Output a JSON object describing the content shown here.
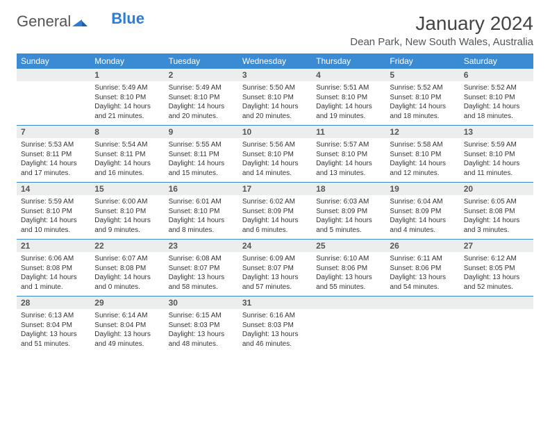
{
  "logo": {
    "text1": "General",
    "text2": "Blue"
  },
  "title": "January 2024",
  "location": "Dean Park, New South Wales, Australia",
  "colors": {
    "header_bg": "#3b8bd4",
    "header_fg": "#ffffff",
    "daynum_bg": "#eceded",
    "text": "#333333",
    "rule": "#3b8bd4"
  },
  "weekdays": [
    "Sunday",
    "Monday",
    "Tuesday",
    "Wednesday",
    "Thursday",
    "Friday",
    "Saturday"
  ],
  "weeks": [
    [
      {
        "num": "",
        "lines": []
      },
      {
        "num": "1",
        "lines": [
          "Sunrise: 5:49 AM",
          "Sunset: 8:10 PM",
          "Daylight: 14 hours and 21 minutes."
        ]
      },
      {
        "num": "2",
        "lines": [
          "Sunrise: 5:49 AM",
          "Sunset: 8:10 PM",
          "Daylight: 14 hours and 20 minutes."
        ]
      },
      {
        "num": "3",
        "lines": [
          "Sunrise: 5:50 AM",
          "Sunset: 8:10 PM",
          "Daylight: 14 hours and 20 minutes."
        ]
      },
      {
        "num": "4",
        "lines": [
          "Sunrise: 5:51 AM",
          "Sunset: 8:10 PM",
          "Daylight: 14 hours and 19 minutes."
        ]
      },
      {
        "num": "5",
        "lines": [
          "Sunrise: 5:52 AM",
          "Sunset: 8:10 PM",
          "Daylight: 14 hours and 18 minutes."
        ]
      },
      {
        "num": "6",
        "lines": [
          "Sunrise: 5:52 AM",
          "Sunset: 8:10 PM",
          "Daylight: 14 hours and 18 minutes."
        ]
      }
    ],
    [
      {
        "num": "7",
        "lines": [
          "Sunrise: 5:53 AM",
          "Sunset: 8:11 PM",
          "Daylight: 14 hours and 17 minutes."
        ]
      },
      {
        "num": "8",
        "lines": [
          "Sunrise: 5:54 AM",
          "Sunset: 8:11 PM",
          "Daylight: 14 hours and 16 minutes."
        ]
      },
      {
        "num": "9",
        "lines": [
          "Sunrise: 5:55 AM",
          "Sunset: 8:11 PM",
          "Daylight: 14 hours and 15 minutes."
        ]
      },
      {
        "num": "10",
        "lines": [
          "Sunrise: 5:56 AM",
          "Sunset: 8:10 PM",
          "Daylight: 14 hours and 14 minutes."
        ]
      },
      {
        "num": "11",
        "lines": [
          "Sunrise: 5:57 AM",
          "Sunset: 8:10 PM",
          "Daylight: 14 hours and 13 minutes."
        ]
      },
      {
        "num": "12",
        "lines": [
          "Sunrise: 5:58 AM",
          "Sunset: 8:10 PM",
          "Daylight: 14 hours and 12 minutes."
        ]
      },
      {
        "num": "13",
        "lines": [
          "Sunrise: 5:59 AM",
          "Sunset: 8:10 PM",
          "Daylight: 14 hours and 11 minutes."
        ]
      }
    ],
    [
      {
        "num": "14",
        "lines": [
          "Sunrise: 5:59 AM",
          "Sunset: 8:10 PM",
          "Daylight: 14 hours and 10 minutes."
        ]
      },
      {
        "num": "15",
        "lines": [
          "Sunrise: 6:00 AM",
          "Sunset: 8:10 PM",
          "Daylight: 14 hours and 9 minutes."
        ]
      },
      {
        "num": "16",
        "lines": [
          "Sunrise: 6:01 AM",
          "Sunset: 8:10 PM",
          "Daylight: 14 hours and 8 minutes."
        ]
      },
      {
        "num": "17",
        "lines": [
          "Sunrise: 6:02 AM",
          "Sunset: 8:09 PM",
          "Daylight: 14 hours and 6 minutes."
        ]
      },
      {
        "num": "18",
        "lines": [
          "Sunrise: 6:03 AM",
          "Sunset: 8:09 PM",
          "Daylight: 14 hours and 5 minutes."
        ]
      },
      {
        "num": "19",
        "lines": [
          "Sunrise: 6:04 AM",
          "Sunset: 8:09 PM",
          "Daylight: 14 hours and 4 minutes."
        ]
      },
      {
        "num": "20",
        "lines": [
          "Sunrise: 6:05 AM",
          "Sunset: 8:08 PM",
          "Daylight: 14 hours and 3 minutes."
        ]
      }
    ],
    [
      {
        "num": "21",
        "lines": [
          "Sunrise: 6:06 AM",
          "Sunset: 8:08 PM",
          "Daylight: 14 hours and 1 minute."
        ]
      },
      {
        "num": "22",
        "lines": [
          "Sunrise: 6:07 AM",
          "Sunset: 8:08 PM",
          "Daylight: 14 hours and 0 minutes."
        ]
      },
      {
        "num": "23",
        "lines": [
          "Sunrise: 6:08 AM",
          "Sunset: 8:07 PM",
          "Daylight: 13 hours and 58 minutes."
        ]
      },
      {
        "num": "24",
        "lines": [
          "Sunrise: 6:09 AM",
          "Sunset: 8:07 PM",
          "Daylight: 13 hours and 57 minutes."
        ]
      },
      {
        "num": "25",
        "lines": [
          "Sunrise: 6:10 AM",
          "Sunset: 8:06 PM",
          "Daylight: 13 hours and 55 minutes."
        ]
      },
      {
        "num": "26",
        "lines": [
          "Sunrise: 6:11 AM",
          "Sunset: 8:06 PM",
          "Daylight: 13 hours and 54 minutes."
        ]
      },
      {
        "num": "27",
        "lines": [
          "Sunrise: 6:12 AM",
          "Sunset: 8:05 PM",
          "Daylight: 13 hours and 52 minutes."
        ]
      }
    ],
    [
      {
        "num": "28",
        "lines": [
          "Sunrise: 6:13 AM",
          "Sunset: 8:04 PM",
          "Daylight: 13 hours and 51 minutes."
        ]
      },
      {
        "num": "29",
        "lines": [
          "Sunrise: 6:14 AM",
          "Sunset: 8:04 PM",
          "Daylight: 13 hours and 49 minutes."
        ]
      },
      {
        "num": "30",
        "lines": [
          "Sunrise: 6:15 AM",
          "Sunset: 8:03 PM",
          "Daylight: 13 hours and 48 minutes."
        ]
      },
      {
        "num": "31",
        "lines": [
          "Sunrise: 6:16 AM",
          "Sunset: 8:03 PM",
          "Daylight: 13 hours and 46 minutes."
        ]
      },
      {
        "num": "",
        "lines": []
      },
      {
        "num": "",
        "lines": []
      },
      {
        "num": "",
        "lines": []
      }
    ]
  ]
}
